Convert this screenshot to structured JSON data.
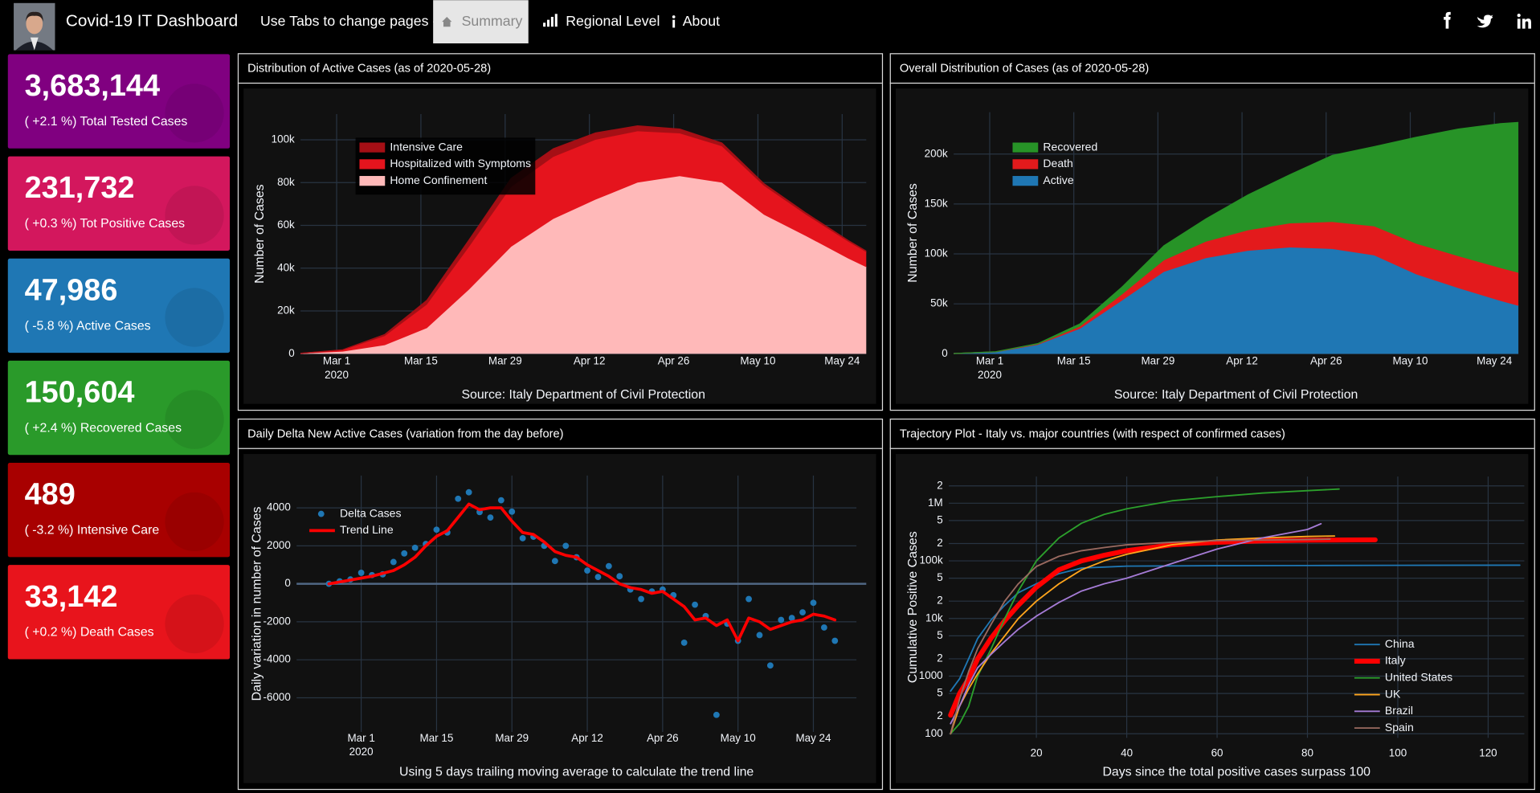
{
  "header": {
    "title": "Covid-19 IT Dashboard",
    "nav_hint": "Use Tabs to change pages -->",
    "tabs": [
      "Summary",
      "Regional Level",
      "About"
    ],
    "active_tab": 0
  },
  "cards": [
    {
      "value": "3,683,144",
      "caption": "( +2.1 %) Total Tested Cases",
      "color": "#800080"
    },
    {
      "value": "231,732",
      "caption": "( +0.3 %) Tot Positive Cases",
      "color": "#d3175d"
    },
    {
      "value": "47,986",
      "caption": "( -5.8 %) Active Cases",
      "color": "#1f77b4"
    },
    {
      "value": "150,604",
      "caption": "( +2.4 %) Recovered Cases",
      "color": "#2a9a2a"
    },
    {
      "value": "489",
      "caption": "( -3.2 %) Intensive Care",
      "color": "#a80000"
    },
    {
      "value": "33,142",
      "caption": "( +0.2 %) Death Cases",
      "color": "#e8141c"
    }
  ],
  "chart_data": [
    {
      "type": "area",
      "stacked": true,
      "grid": true,
      "legend": "upper left",
      "title": "Distribution of Active Cases (as of 2020-05-28)",
      "ylabel": "Number of Cases",
      "note": "Source: Italy Department of Civil Protection",
      "x": [
        "2020-02-24",
        "2020-03-02",
        "2020-03-09",
        "2020-03-16",
        "2020-03-23",
        "2020-03-30",
        "2020-04-06",
        "2020-04-13",
        "2020-04-20",
        "2020-04-27",
        "2020-05-04",
        "2020-05-11",
        "2020-05-18",
        "2020-05-25",
        "2020-05-28"
      ],
      "xlim": [
        "2020-02-24",
        "2020-05-28"
      ],
      "xticks": [
        {
          "value": "2020-03-01",
          "label": "Mar 1"
        },
        {
          "value": "2020-03-15",
          "label": "Mar 15"
        },
        {
          "value": "2020-03-29",
          "label": "Mar 29"
        },
        {
          "value": "2020-04-12",
          "label": "Apr 12"
        },
        {
          "value": "2020-04-26",
          "label": "Apr 26"
        },
        {
          "value": "2020-05-10",
          "label": "May 10"
        },
        {
          "value": "2020-05-24",
          "label": "May 24"
        }
      ],
      "x_year_label": "2020",
      "ylim": [
        0,
        112000
      ],
      "yticks": [
        0,
        {
          "value": 20000,
          "label": "20k"
        },
        {
          "value": 40000,
          "label": "40k"
        },
        {
          "value": 60000,
          "label": "60k"
        },
        {
          "value": 80000,
          "label": "80k"
        },
        {
          "value": 100000,
          "label": "100k"
        }
      ],
      "series": [
        {
          "name": "Home Confinement",
          "color": "#ffb9b9",
          "values": [
            100,
            1000,
            4000,
            12000,
            30000,
            50000,
            63000,
            72000,
            80000,
            83000,
            80000,
            65000,
            55000,
            44500,
            40500
          ]
        },
        {
          "name": "Hospitalized with Symptoms",
          "color": "#e5141d",
          "values": [
            100,
            700,
            4300,
            11000,
            20000,
            28000,
            29000,
            28000,
            24000,
            20000,
            17000,
            13500,
            10000,
            7900,
            7000
          ]
        },
        {
          "name": "Intensive Care",
          "color": "#a50f15",
          "values": [
            30,
            170,
            730,
            2000,
            3200,
            4000,
            3800,
            3200,
            2500,
            2000,
            1500,
            1000,
            750,
            540,
            490
          ]
        }
      ]
    },
    {
      "type": "area",
      "stacked": true,
      "grid": true,
      "legend": "upper left",
      "title": "Overall Distribution of Cases (as of 2020-05-28)",
      "ylabel": "Number of Cases",
      "note": "Source: Italy Department of Civil Protection",
      "x": [
        "2020-02-24",
        "2020-03-02",
        "2020-03-09",
        "2020-03-16",
        "2020-03-23",
        "2020-03-30",
        "2020-04-06",
        "2020-04-13",
        "2020-04-20",
        "2020-04-27",
        "2020-05-04",
        "2020-05-11",
        "2020-05-18",
        "2020-05-25",
        "2020-05-28"
      ],
      "xlim": [
        "2020-02-24",
        "2020-05-28"
      ],
      "xticks": [
        {
          "value": "2020-03-01",
          "label": "Mar 1"
        },
        {
          "value": "2020-03-15",
          "label": "Mar 15"
        },
        {
          "value": "2020-03-29",
          "label": "Mar 29"
        },
        {
          "value": "2020-04-12",
          "label": "Apr 12"
        },
        {
          "value": "2020-04-26",
          "label": "Apr 26"
        },
        {
          "value": "2020-05-10",
          "label": "May 10"
        },
        {
          "value": "2020-05-24",
          "label": "May 24"
        }
      ],
      "x_year_label": "2020",
      "ylim": [
        0,
        242000
      ],
      "yticks": [
        0,
        {
          "value": 50000,
          "label": "50k"
        },
        {
          "value": 100000,
          "label": "100k"
        },
        {
          "value": 150000,
          "label": "150k"
        },
        {
          "value": 200000,
          "label": "200k"
        }
      ],
      "series": [
        {
          "name": "Active",
          "color": "#1f77b4",
          "values": [
            230,
            1870,
            9030,
            25000,
            53200,
            82000,
            95800,
            103200,
            106500,
            105000,
            98500,
            79500,
            65750,
            52940,
            47990
          ]
        },
        {
          "name": "Death",
          "color": "#e31a1c",
          "values": [
            7,
            52,
            463,
            2158,
            6077,
            11591,
            16523,
            20465,
            24114,
            26977,
            29079,
            30739,
            32007,
            32877,
            33142
          ]
        },
        {
          "name": "Recovered",
          "color": "#279327",
          "values": [
            1,
            160,
            724,
            2749,
            7432,
            14620,
            22837,
            35435,
            48877,
            66624,
            79914,
            106587,
            127326,
            144658,
            150604
          ]
        }
      ]
    },
    {
      "type": "scatter",
      "grid": true,
      "legend": "upper left",
      "title": "Daily Delta New Active Cases (variation from the day before)",
      "ylabel": "Daily variation in number of Cases",
      "note": "Using 5 days trailing moving average to calculate the trend line",
      "x": [
        "2020-02-24",
        "2020-02-26",
        "2020-02-28",
        "2020-03-01",
        "2020-03-03",
        "2020-03-05",
        "2020-03-07",
        "2020-03-09",
        "2020-03-11",
        "2020-03-13",
        "2020-03-15",
        "2020-03-17",
        "2020-03-19",
        "2020-03-21",
        "2020-03-23",
        "2020-03-25",
        "2020-03-27",
        "2020-03-29",
        "2020-03-31",
        "2020-04-02",
        "2020-04-04",
        "2020-04-06",
        "2020-04-08",
        "2020-04-10",
        "2020-04-12",
        "2020-04-14",
        "2020-04-16",
        "2020-04-18",
        "2020-04-20",
        "2020-04-22",
        "2020-04-24",
        "2020-04-26",
        "2020-04-28",
        "2020-04-30",
        "2020-05-02",
        "2020-05-04",
        "2020-05-06",
        "2020-05-08",
        "2020-05-10",
        "2020-05-12",
        "2020-05-14",
        "2020-05-16",
        "2020-05-18",
        "2020-05-20",
        "2020-05-22",
        "2020-05-24",
        "2020-05-26",
        "2020-05-28"
      ],
      "xlim": [
        "2020-02-18",
        "2020-06-01"
      ],
      "xticks": [
        {
          "value": "2020-03-01",
          "label": "Mar 1"
        },
        {
          "value": "2020-03-15",
          "label": "Mar 15"
        },
        {
          "value": "2020-03-29",
          "label": "Mar 29"
        },
        {
          "value": "2020-04-12",
          "label": "Apr 12"
        },
        {
          "value": "2020-04-26",
          "label": "Apr 26"
        },
        {
          "value": "2020-05-10",
          "label": "May 10"
        },
        {
          "value": "2020-05-24",
          "label": "May 24"
        }
      ],
      "x_year_label": "2020",
      "ylim": [
        -7800,
        5700
      ],
      "yticks": [
        -6000,
        -4000,
        -2000,
        0,
        2000,
        4000
      ],
      "series": [
        {
          "name": "Delta Cases",
          "mode": "markers",
          "color": "#1f77b4",
          "values": [
            0,
            130,
            230,
            580,
            460,
            500,
            1150,
            1600,
            1900,
            2100,
            2850,
            2700,
            4480,
            4820,
            3780,
            3490,
            4400,
            3800,
            2400,
            2480,
            2000,
            1200,
            2000,
            1400,
            700,
            360,
            930,
            400,
            -300,
            -800,
            -400,
            -300,
            -600,
            -3100,
            -1100,
            -1700,
            -6900,
            -2100,
            -3000,
            -800,
            -2700,
            -4300,
            -1900,
            -1800,
            -1500,
            -1000,
            -2300,
            -3000
          ]
        },
        {
          "name": "Trend Line",
          "mode": "lines",
          "color": "#ff0000",
          "line_width": 3,
          "values": [
            0,
            100,
            200,
            300,
            400,
            550,
            700,
            1000,
            1400,
            2000,
            2500,
            2800,
            3500,
            4200,
            3900,
            4000,
            4000,
            3300,
            2700,
            2600,
            2200,
            1700,
            1500,
            1400,
            1000,
            700,
            400,
            0,
            -200,
            -300,
            -500,
            -400,
            -800,
            -1200,
            -1900,
            -1800,
            -2200,
            -1900,
            -3000,
            -1800,
            -2000,
            -2400,
            -2200,
            -2000,
            -1900,
            -1600,
            -1700,
            -1900
          ]
        }
      ]
    },
    {
      "type": "line",
      "grid": true,
      "log_y": true,
      "legend": "lower right",
      "title": "Trajectory Plot - Italy vs. major countries (with respect of confirmed cases)",
      "ylabel": "Cumulative Positive Cases",
      "xlabel": "Days since the total positive cases surpass 100",
      "xlim": [
        0.6,
        128
      ],
      "xticks": [
        20,
        40,
        60,
        80,
        100,
        120
      ],
      "ylim": [
        85,
        2900000
      ],
      "yticks": [
        100,
        {
          "value": 200,
          "label": "2"
        },
        {
          "value": 500,
          "label": "5"
        },
        1000,
        {
          "value": 2000,
          "label": "2"
        },
        {
          "value": 5000,
          "label": "5"
        },
        {
          "value": 10000,
          "label": "10k"
        },
        {
          "value": 20000,
          "label": "2"
        },
        {
          "value": 50000,
          "label": "5"
        },
        {
          "value": 100000,
          "label": "100k"
        },
        {
          "value": 200000,
          "label": "2"
        },
        {
          "value": 500000,
          "label": "5"
        },
        {
          "value": 1000000,
          "label": "1M"
        },
        {
          "value": 2000000,
          "label": "2"
        }
      ],
      "series": [
        {
          "name": "China",
          "color": "#1f77b4",
          "x": [
            1,
            3,
            5,
            7,
            10,
            13,
            16,
            20,
            25,
            30,
            40,
            60,
            80,
            100,
            127
          ],
          "values": [
            550,
            900,
            2000,
            4500,
            9500,
            17000,
            28000,
            40000,
            60000,
            75000,
            81000,
            82500,
            83000,
            83600,
            84100
          ]
        },
        {
          "name": "Italy",
          "color": "#ff0000",
          "line_width": 5,
          "x": [
            1,
            3,
            5,
            7,
            10,
            13,
            16,
            20,
            25,
            30,
            35,
            40,
            50,
            60,
            70,
            80,
            95
          ],
          "values": [
            210,
            500,
            900,
            2000,
            4600,
            9200,
            17000,
            35000,
            70000,
            100000,
            125000,
            150000,
            190000,
            210000,
            222000,
            228000,
            231700
          ]
        },
        {
          "name": "United States",
          "color": "#2ca02c",
          "x": [
            1,
            3,
            5,
            7,
            10,
            13,
            16,
            20,
            25,
            30,
            35,
            40,
            50,
            60,
            70,
            80,
            87
          ],
          "values": [
            100,
            150,
            300,
            1000,
            3000,
            10000,
            30000,
            100000,
            250000,
            450000,
            640000,
            800000,
            1100000,
            1300000,
            1500000,
            1650000,
            1760000
          ]
        },
        {
          "name": "UK",
          "color": "#ffa51c",
          "x": [
            1,
            3,
            5,
            7,
            10,
            13,
            16,
            20,
            25,
            30,
            35,
            40,
            50,
            60,
            70,
            80,
            86
          ],
          "values": [
            100,
            300,
            600,
            1100,
            2500,
            5000,
            10000,
            20000,
            40000,
            70000,
            100000,
            130000,
            190000,
            230000,
            250000,
            265000,
            270000
          ]
        },
        {
          "name": "Brazil",
          "color": "#a57bd6",
          "x": [
            1,
            3,
            5,
            7,
            10,
            13,
            16,
            20,
            25,
            30,
            35,
            40,
            50,
            60,
            70,
            80,
            83
          ],
          "values": [
            150,
            300,
            700,
            1400,
            2400,
            4000,
            6500,
            11000,
            19000,
            30000,
            40000,
            50000,
            90000,
            160000,
            250000,
            350000,
            440000
          ]
        },
        {
          "name": "Spain",
          "color": "#9a6a60",
          "x": [
            1,
            3,
            5,
            7,
            10,
            13,
            16,
            20,
            25,
            30,
            35,
            40,
            50,
            60,
            70,
            80,
            85
          ],
          "values": [
            100,
            400,
            1200,
            3000,
            8000,
            20000,
            40000,
            80000,
            120000,
            150000,
            170000,
            190000,
            210000,
            225000,
            230000,
            234000,
            238000
          ]
        }
      ]
    }
  ]
}
